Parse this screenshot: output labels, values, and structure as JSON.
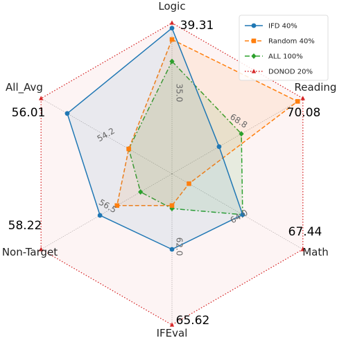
{
  "chart_data": {
    "type": "radar",
    "axes": [
      "Logic",
      "Reading",
      "Math",
      "IFEval",
      "Non-Target",
      "All_Avg"
    ],
    "axis_max_labels": [
      "39.31",
      "70.08",
      "67.44",
      "65.62",
      "58.22",
      "56.01"
    ],
    "ring_labels": [
      {
        "axis": 0,
        "text": "35.0"
      },
      {
        "axis": 1,
        "text": "68.8"
      },
      {
        "axis": 2,
        "text": "64.0"
      },
      {
        "axis": 3,
        "text": "62.0"
      },
      {
        "axis": 4,
        "text": "56.5"
      },
      {
        "axis": 5,
        "text": "54.2"
      }
    ],
    "series": [
      {
        "name": "IFD 40%",
        "color": "#1f77b4",
        "marker": "circle",
        "dash": "solid",
        "values": [
          0.965,
          0.36,
          0.54,
          0.5,
          0.55,
          0.8
        ]
      },
      {
        "name": "Random 40%",
        "color": "#ff7f0e",
        "marker": "square",
        "dash": "dashed",
        "values": [
          0.89,
          0.96,
          0.13,
          0.21,
          0.42,
          0.33
        ]
      },
      {
        "name": "ALL 100%",
        "color": "#2ca02c",
        "marker": "diamond",
        "dash": "dashdot",
        "values": [
          0.745,
          0.53,
          0.54,
          0.23,
          0.24,
          0.33
        ]
      },
      {
        "name": "DONOD 20%",
        "color": "#d62728",
        "marker": "triangle",
        "dash": "dotted",
        "values": [
          1,
          1,
          1,
          1,
          1,
          1
        ]
      }
    ],
    "legend_position": "top-right"
  }
}
